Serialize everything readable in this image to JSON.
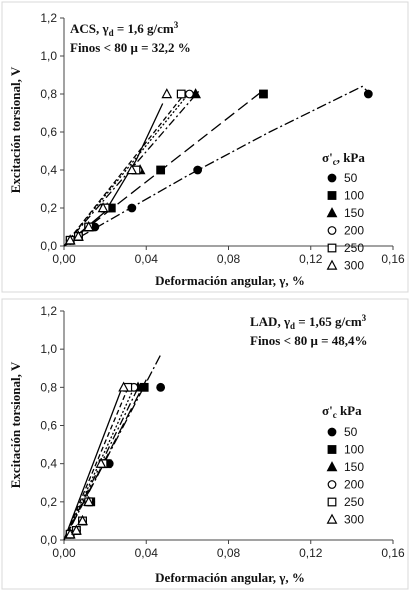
{
  "chart_data": [
    {
      "type": "scatter",
      "note_line1_prefix": "ACS, γ",
      "note_line1_sub": "d",
      "note_line1_suffix": " = 1,6 g/cm",
      "note_line1_sup": "3",
      "note_line2": "Finos < 80 μ = 32,2 %",
      "xlabel": "Deformación angular, γ, %",
      "ylabel": "Excitación torsional, V",
      "xlim": [
        0,
        0.16
      ],
      "ylim": [
        0,
        1.2
      ],
      "xticks": [
        0,
        0.04,
        0.08,
        0.12,
        0.16
      ],
      "xtick_labels": [
        "0,00",
        "0,04",
        "0,08",
        "0,12",
        "0,16"
      ],
      "yticks": [
        0,
        0.2,
        0.4,
        0.6,
        0.8,
        1.0,
        1.2
      ],
      "ytick_labels": [
        "0,0",
        "0,2",
        "0,4",
        "0,6",
        "0,8",
        "1,0",
        "1,2"
      ],
      "legend_title_prefix": "σ'",
      "legend_title_sub": "c",
      "legend_title_suffix": ", kPa",
      "legend_placement": "right",
      "grid": false,
      "series": [
        {
          "name": "50",
          "marker": "circle-filled",
          "dash": "10 3 2 3",
          "points": [
            [
              0.003,
              0.03
            ],
            [
              0.007,
              0.05
            ],
            [
              0.015,
              0.1
            ],
            [
              0.033,
              0.2
            ],
            [
              0.065,
              0.4
            ],
            [
              0.148,
              0.8
            ]
          ],
          "fit": [
            [
              0.0,
              0.0
            ],
            [
              0.06,
              0.37
            ],
            [
              0.1,
              0.6
            ],
            [
              0.145,
              0.84
            ],
            [
              0.149,
              0.8
            ]
          ]
        },
        {
          "name": "100",
          "marker": "square-filled",
          "dash": "12 5",
          "points": [
            [
              0.003,
              0.03
            ],
            [
              0.007,
              0.05
            ],
            [
              0.012,
              0.1
            ],
            [
              0.023,
              0.2
            ],
            [
              0.047,
              0.4
            ],
            [
              0.097,
              0.8
            ]
          ],
          "fit": [
            [
              0.0,
              0.0
            ],
            [
              0.097,
              0.82
            ]
          ]
        },
        {
          "name": "150",
          "marker": "triangle-filled",
          "dash": "8 3 2 3",
          "points": [
            [
              0.003,
              0.03
            ],
            [
              0.007,
              0.05
            ],
            [
              0.012,
              0.1
            ],
            [
              0.021,
              0.2
            ],
            [
              0.037,
              0.4
            ],
            [
              0.064,
              0.8
            ]
          ],
          "fit": [
            [
              0.0,
              0.0
            ],
            [
              0.066,
              0.82
            ]
          ]
        },
        {
          "name": "200",
          "marker": "circle-open",
          "dash": "2 2",
          "points": [
            [
              0.003,
              0.03
            ],
            [
              0.007,
              0.05
            ],
            [
              0.012,
              0.1
            ],
            [
              0.02,
              0.2
            ],
            [
              0.036,
              0.4
            ],
            [
              0.061,
              0.8
            ]
          ],
          "fit": [
            [
              0.0,
              0.0
            ],
            [
              0.062,
              0.82
            ]
          ]
        },
        {
          "name": "250",
          "marker": "square-open",
          "dash": "5 3",
          "points": [
            [
              0.003,
              0.03
            ],
            [
              0.007,
              0.05
            ],
            [
              0.012,
              0.1
            ],
            [
              0.02,
              0.2
            ],
            [
              0.035,
              0.4
            ],
            [
              0.057,
              0.8
            ]
          ],
          "fit": [
            [
              0.0,
              0.0
            ],
            [
              0.06,
              0.82
            ]
          ]
        },
        {
          "name": "300",
          "marker": "triangle-open",
          "dash": "",
          "points": [
            [
              0.003,
              0.03
            ],
            [
              0.007,
              0.05
            ],
            [
              0.012,
              0.1
            ],
            [
              0.019,
              0.2
            ],
            [
              0.033,
              0.4
            ],
            [
              0.05,
              0.8
            ]
          ],
          "fit": [
            [
              0.0,
              0.0
            ],
            [
              0.02,
              0.18
            ],
            [
              0.035,
              0.45
            ],
            [
              0.048,
              0.75
            ]
          ]
        }
      ]
    },
    {
      "type": "scatter",
      "note_line1_prefix": "LAD, γ",
      "note_line1_sub": "d",
      "note_line1_suffix": " = 1,65 g/cm",
      "note_line1_sup": "3",
      "note_line2": "Finos < 80 μ = 48,4%",
      "xlabel": "Deformación angular, γ, %",
      "ylabel": "Excitación torsional, V",
      "xlim": [
        0,
        0.16
      ],
      "ylim": [
        0,
        1.2
      ],
      "xticks": [
        0,
        0.04,
        0.08,
        0.12,
        0.16
      ],
      "xtick_labels": [
        "0,00",
        "0,04",
        "0,08",
        "0,12",
        "0,16"
      ],
      "yticks": [
        0,
        0.2,
        0.4,
        0.6,
        0.8,
        1.0,
        1.2
      ],
      "ytick_labels": [
        "0,0",
        "0,2",
        "0,4",
        "0,6",
        "0,8",
        "1,0",
        "1,2"
      ],
      "legend_title_prefix": "σ'",
      "legend_title_sub": "c",
      "legend_title_suffix": " kPa",
      "legend_placement": "right",
      "grid": false,
      "series": [
        {
          "name": "50",
          "marker": "circle-filled",
          "dash": "10 3 2 3",
          "points": [
            [
              0.003,
              0.03
            ],
            [
              0.006,
              0.05
            ],
            [
              0.009,
              0.1
            ],
            [
              0.013,
              0.2
            ],
            [
              0.022,
              0.4
            ],
            [
              0.047,
              0.8
            ]
          ],
          "fit": [
            [
              0.0,
              0.0
            ],
            [
              0.047,
              0.97
            ]
          ]
        },
        {
          "name": "100",
          "marker": "square-filled",
          "dash": "12 5",
          "points": [
            [
              0.003,
              0.03
            ],
            [
              0.006,
              0.05
            ],
            [
              0.009,
              0.1
            ],
            [
              0.013,
              0.2
            ],
            [
              0.021,
              0.4
            ],
            [
              0.039,
              0.8
            ]
          ],
          "fit": [
            [
              0.0,
              0.0
            ],
            [
              0.04,
              0.84
            ]
          ]
        },
        {
          "name": "150",
          "marker": "triangle-filled",
          "dash": "8 3 2 3",
          "points": [
            [
              0.003,
              0.03
            ],
            [
              0.006,
              0.05
            ],
            [
              0.009,
              0.1
            ],
            [
              0.012,
              0.2
            ],
            [
              0.02,
              0.4
            ],
            [
              0.036,
              0.8
            ]
          ],
          "fit": [
            [
              0.0,
              0.0
            ],
            [
              0.037,
              0.82
            ]
          ]
        },
        {
          "name": "200",
          "marker": "circle-open",
          "dash": "2 2",
          "points": [
            [
              0.003,
              0.03
            ],
            [
              0.006,
              0.05
            ],
            [
              0.009,
              0.1
            ],
            [
              0.012,
              0.2
            ],
            [
              0.019,
              0.4
            ],
            [
              0.034,
              0.8
            ]
          ],
          "fit": [
            [
              0.0,
              0.0
            ],
            [
              0.035,
              0.82
            ]
          ]
        },
        {
          "name": "250",
          "marker": "square-open",
          "dash": "5 3",
          "points": [
            [
              0.003,
              0.03
            ],
            [
              0.006,
              0.05
            ],
            [
              0.009,
              0.1
            ],
            [
              0.012,
              0.2
            ],
            [
              0.019,
              0.4
            ],
            [
              0.031,
              0.8
            ]
          ],
          "fit": [
            [
              0.0,
              0.0
            ],
            [
              0.032,
              0.82
            ]
          ]
        },
        {
          "name": "300",
          "marker": "triangle-open",
          "dash": "",
          "points": [
            [
              0.003,
              0.03
            ],
            [
              0.006,
              0.05
            ],
            [
              0.009,
              0.1
            ],
            [
              0.012,
              0.2
            ],
            [
              0.018,
              0.4
            ],
            [
              0.029,
              0.8
            ]
          ],
          "fit": [
            [
              0.0,
              0.0
            ],
            [
              0.029,
              0.82
            ]
          ]
        }
      ]
    }
  ]
}
